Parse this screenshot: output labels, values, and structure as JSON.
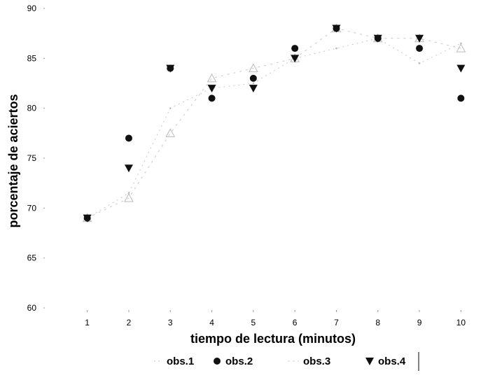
{
  "chart_data": {
    "type": "scatter",
    "title": "",
    "xlabel": "tiempo de lectura  (minutos)",
    "ylabel": "porcentaje de aciertos",
    "xlim": [
      1,
      10
    ],
    "ylim": [
      60,
      90
    ],
    "x_ticks": [
      "1",
      "2",
      "3",
      "4",
      "5",
      "6",
      "7",
      "8",
      "9",
      "10"
    ],
    "y_ticks": [
      "60",
      "65",
      "70",
      "75",
      "80",
      "85",
      "90"
    ],
    "grid": false,
    "legend_position": "bottom",
    "x": [
      1,
      2,
      3,
      4,
      5,
      6,
      7,
      8,
      9,
      10
    ],
    "series": [
      {
        "name": "obs.1",
        "marker": "dot",
        "values": [
          69,
          71.5,
          80,
          82,
          82.5,
          85,
          86,
          87,
          84.5,
          86.5
        ]
      },
      {
        "name": "obs.2",
        "marker": "circle",
        "values": [
          69,
          77,
          84,
          81,
          83,
          86,
          88,
          87,
          86,
          81
        ]
      },
      {
        "name": "obs.3",
        "marker": "triangle-up",
        "values": [
          69,
          71,
          77.5,
          83,
          84,
          85,
          88,
          87,
          87,
          86
        ]
      },
      {
        "name": "obs.4",
        "marker": "triangle-down",
        "values": [
          69,
          74,
          84,
          82,
          82,
          85,
          88,
          87,
          87,
          84
        ]
      }
    ]
  }
}
